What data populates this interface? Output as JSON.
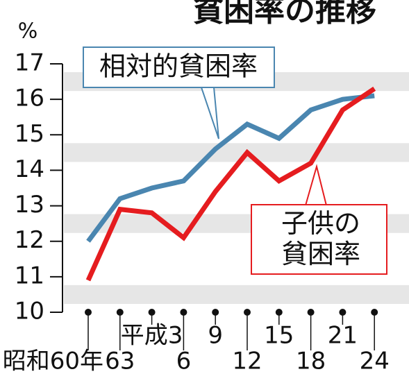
{
  "chart_data": {
    "type": "line",
    "title": "貧困率の推移",
    "y_unit": "%",
    "categories": [
      "昭和60年",
      "63",
      "平成3",
      "6",
      "9",
      "12",
      "15",
      "18",
      "21",
      "24"
    ],
    "series": [
      {
        "name": "相対的貧困率",
        "color": "#4a86b0",
        "values": [
          12.0,
          13.2,
          13.5,
          13.7,
          14.6,
          15.3,
          14.9,
          15.7,
          16.0,
          16.1
        ]
      },
      {
        "name": "子供の貧困率",
        "color": "#e51c1f",
        "values": [
          10.9,
          12.9,
          12.8,
          12.1,
          13.4,
          14.5,
          13.7,
          14.2,
          15.7,
          16.3
        ]
      }
    ],
    "ylim": [
      10,
      17
    ],
    "yticks": [
      10,
      11,
      12,
      13,
      14,
      15,
      16,
      17
    ],
    "grid": true
  }
}
